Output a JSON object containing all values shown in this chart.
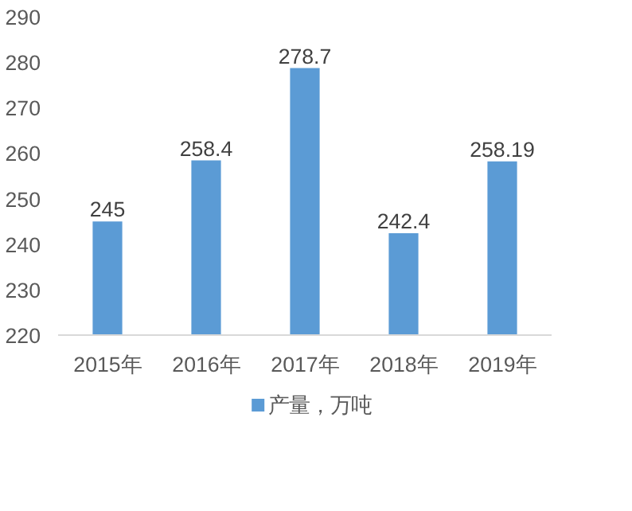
{
  "chart_data": {
    "type": "bar",
    "categories": [
      "2015年",
      "2016年",
      "2017年",
      "2018年",
      "2019年"
    ],
    "series": [
      {
        "name": "产量，万吨",
        "color": "#5b9bd5",
        "values": [
          245,
          258.4,
          278.7,
          242.4,
          258.19
        ]
      }
    ],
    "ylim": [
      220,
      290
    ],
    "yticks": [
      220,
      230,
      240,
      250,
      260,
      270,
      280,
      290
    ],
    "data_labels": true,
    "grid": false,
    "legend": "bottom"
  }
}
